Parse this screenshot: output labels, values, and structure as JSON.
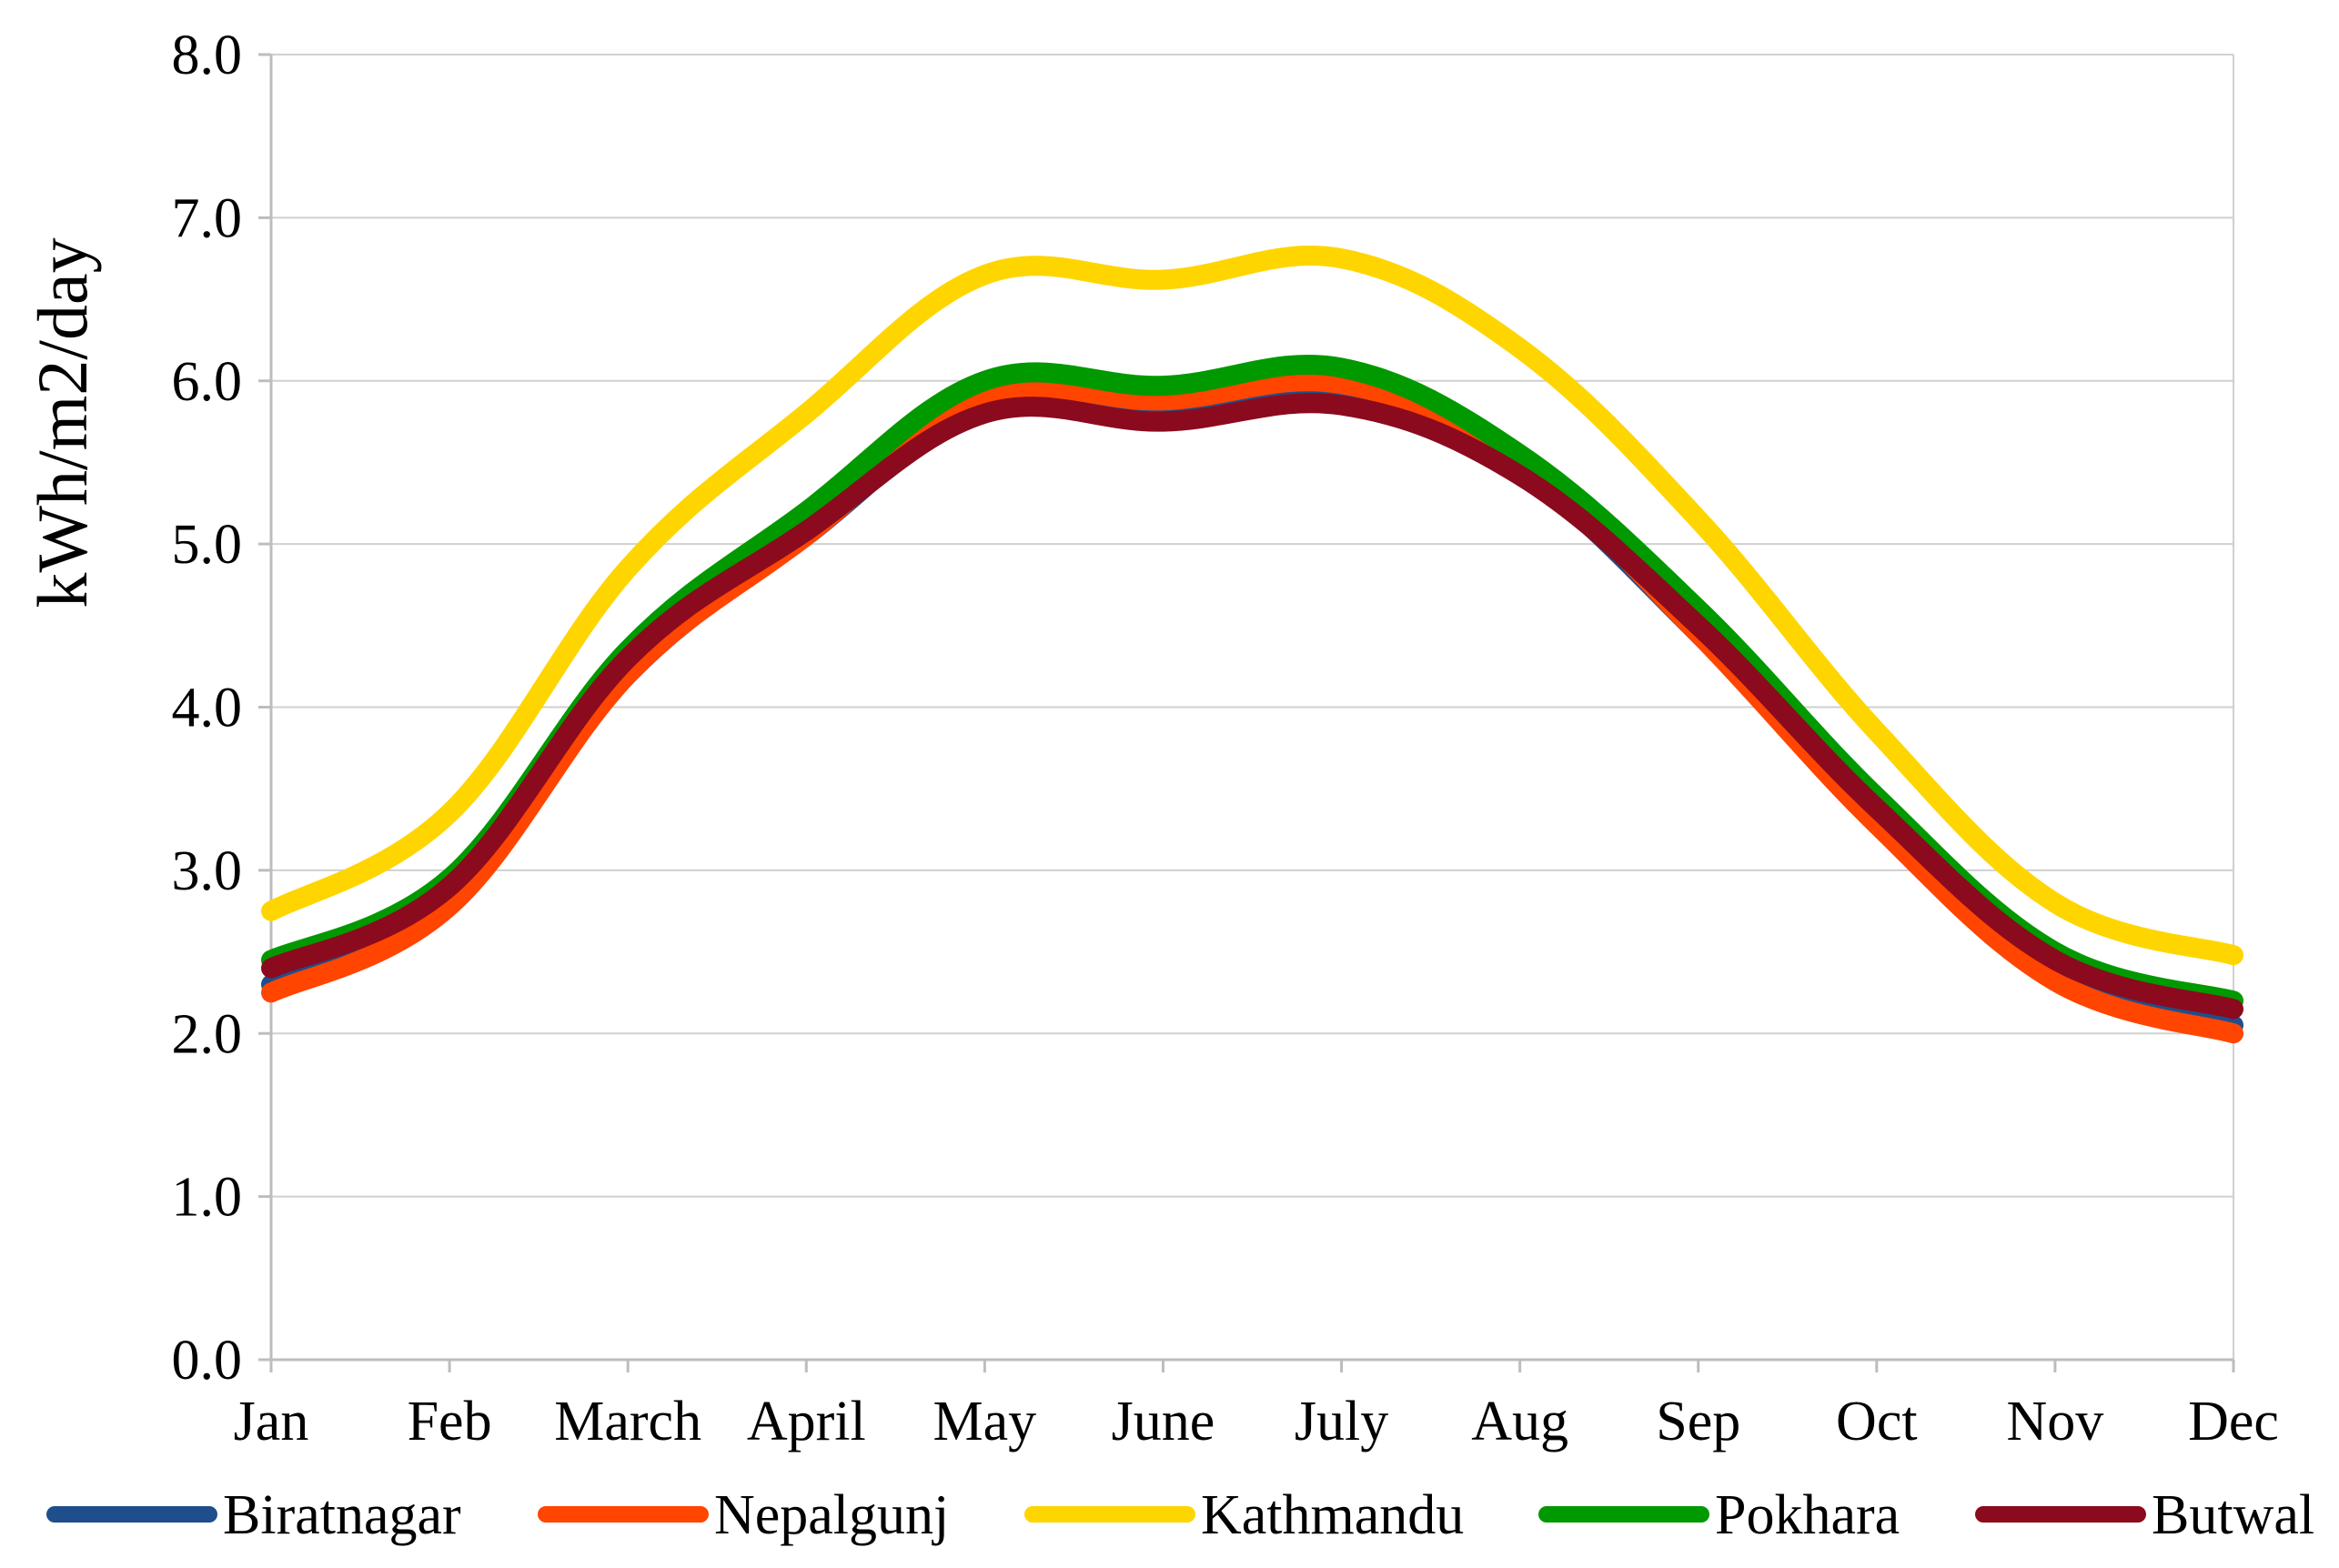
{
  "chart_data": {
    "type": "line",
    "title": "",
    "xlabel": "",
    "ylabel": "kWh/m2/day",
    "ylim": [
      0,
      8
    ],
    "yticks": [
      "0.0",
      "1.0",
      "2.0",
      "3.0",
      "4.0",
      "5.0",
      "6.0",
      "7.0",
      "8.0"
    ],
    "categories": [
      "Jan",
      "Feb",
      "March",
      "April",
      "May",
      "June",
      "July",
      "Aug",
      "Sep",
      "Oct",
      "Nov",
      "Dec"
    ],
    "grid": true,
    "legend_position": "bottom",
    "series": [
      {
        "name": "Biratnagar",
        "color": "#1F4E8C",
        "values": [
          2.3,
          2.8,
          4.2,
          5.05,
          5.85,
          5.8,
          5.9,
          5.45,
          4.45,
          3.3,
          2.35,
          2.05
        ]
      },
      {
        "name": "Nepalgunj",
        "color": "#FF4500",
        "values": [
          2.25,
          2.78,
          4.2,
          5.05,
          5.9,
          5.88,
          5.98,
          5.5,
          4.45,
          3.28,
          2.32,
          2.0
        ]
      },
      {
        "name": "Kathmandu",
        "color": "#FFD500",
        "values": [
          2.75,
          3.35,
          4.85,
          5.8,
          6.65,
          6.62,
          6.75,
          6.2,
          5.15,
          3.85,
          2.8,
          2.48
        ]
      },
      {
        "name": "Pokhara",
        "color": "#009900",
        "values": [
          2.45,
          2.95,
          4.35,
          5.2,
          6.0,
          5.97,
          6.08,
          5.55,
          4.6,
          3.45,
          2.5,
          2.2
        ]
      },
      {
        "name": "Butwal",
        "color": "#8B0A1E",
        "values": [
          2.4,
          2.9,
          4.3,
          5.08,
          5.8,
          5.75,
          5.85,
          5.42,
          4.5,
          3.38,
          2.45,
          2.15
        ]
      }
    ]
  }
}
